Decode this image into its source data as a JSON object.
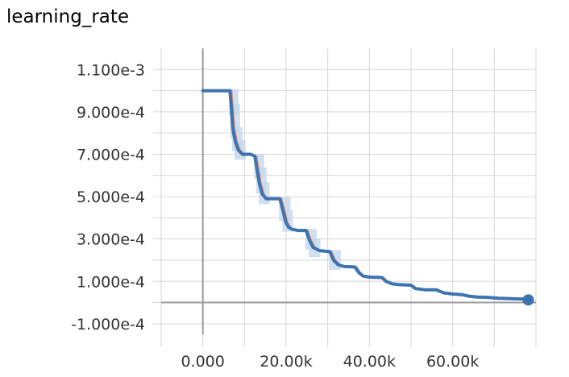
{
  "chart_data": {
    "type": "line",
    "title": "learning_rate",
    "xlabel": "",
    "ylabel": "",
    "xlim": [
      -10000,
      80000
    ],
    "ylim": [
      -0.00015,
      0.0012
    ],
    "x_ticks": [
      0,
      20000,
      40000,
      60000
    ],
    "x_tick_labels": [
      "0.000",
      "20.00k",
      "40.00k",
      "60.00k"
    ],
    "y_ticks": [
      -0.0001,
      0.0001,
      0.0003,
      0.0005,
      0.0007,
      0.0009,
      0.0011
    ],
    "y_tick_labels": [
      "-1.000e-4",
      "1.000e-4",
      "3.000e-4",
      "5.000e-4",
      "7.000e-4",
      "9.000e-4",
      "1.100e-3"
    ],
    "grid": true,
    "colors": {
      "smoothed": "#3c73b1",
      "raw": "#e8755c",
      "band": "#c6d8ea",
      "grid": "#d6d6d6",
      "zero_axis": "#9b9b9b"
    },
    "series": [
      {
        "x": [
          0,
          6500,
          6800,
          7200,
          7800,
          8500,
          9500,
          11500,
          12500,
          13000,
          13600,
          14300,
          15200,
          16500,
          18500,
          19300,
          19900,
          20600,
          21500,
          23000,
          24800,
          25600,
          26500,
          28000,
          30500,
          31400,
          32500,
          34000,
          36500,
          37500,
          38500,
          40000,
          43000,
          44000,
          45500,
          47000,
          50000,
          51000,
          53500,
          56000,
          58000,
          60000,
          62000,
          64000,
          66000,
          68000,
          71000,
          74000,
          77000
        ],
        "y": [
          0.001,
          0.001,
          0.00093,
          0.00082,
          0.00076,
          0.00072,
          0.0007,
          0.0007,
          0.00069,
          0.00063,
          0.00056,
          0.00051,
          0.00049,
          0.00049,
          0.00049,
          0.00043,
          0.00038,
          0.000355,
          0.000345,
          0.00034,
          0.00034,
          0.000295,
          0.00026,
          0.000245,
          0.00024,
          0.0002,
          0.000178,
          0.00017,
          0.000168,
          0.00014,
          0.000125,
          0.00012,
          0.000118,
          0.0001,
          8.8e-05,
          8.5e-05,
          8.2e-05,
          6.6e-05,
          6e-05,
          6e-05,
          4.5e-05,
          4e-05,
          3.8e-05,
          3e-05,
          2.6e-05,
          2.5e-05,
          2e-05,
          1.8e-05,
          1.6e-05
        ]
      }
    ]
  }
}
